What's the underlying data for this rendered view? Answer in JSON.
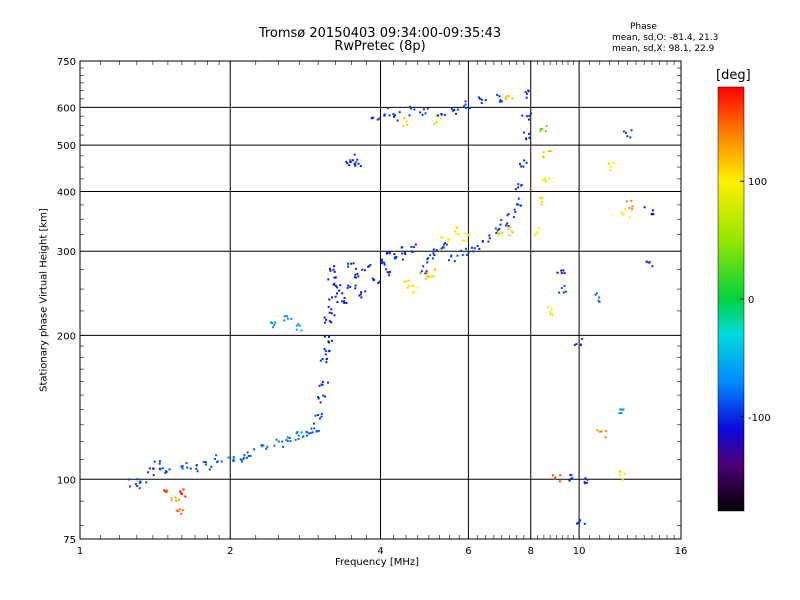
{
  "header": {
    "title_line1": "Tromsø 20150403 09:34:00-09:35:43",
    "title_line2": "RwPretec (8p)"
  },
  "phase_box": {
    "heading": "Phase",
    "line_o": "mean, sd,O: -81.4, 21.3",
    "line_x": "mean, sd,X:  98.1, 22.9"
  },
  "colorbar": {
    "unit": "[deg]",
    "ticks": [
      {
        "value": 100,
        "label": "100"
      },
      {
        "value": 0,
        "label": "0"
      },
      {
        "value": -100,
        "label": "-100"
      }
    ],
    "range": [
      -180,
      180
    ]
  },
  "chart_data": {
    "type": "scatter",
    "title": "Tromsø 20150403 09:34:00-09:35:43",
    "subtitle": "RwPretec (8p)",
    "xlabel": "Frequency [MHz]",
    "ylabel": "Stationary phase Virtual Height [km]",
    "xscale": "log",
    "yscale": "log",
    "xlim": [
      1,
      16
    ],
    "ylim": [
      75,
      750
    ],
    "xticks": [
      1,
      2,
      4,
      6,
      8,
      10,
      16
    ],
    "xtick_labels": [
      "1",
      "2",
      "4",
      "6",
      "8",
      "10",
      "16"
    ],
    "yticks": [
      75,
      100,
      200,
      300,
      400,
      500,
      600,
      750
    ],
    "ytick_labels": [
      "75",
      "100",
      "200",
      "300",
      "400",
      "500",
      "600",
      "750"
    ],
    "grid_x": [
      2,
      4,
      6,
      8,
      10
    ],
    "grid_y": [
      100,
      200,
      300,
      400,
      500,
      600
    ],
    "grid": true,
    "color_scale": "phase_deg",
    "points": [
      [
        1.28,
        98,
        -95
      ],
      [
        1.33,
        97,
        -90
      ],
      [
        1.38,
        104,
        -100
      ],
      [
        1.42,
        107,
        -95
      ],
      [
        1.48,
        104,
        -90
      ],
      [
        1.5,
        95,
        160
      ],
      [
        1.55,
        90,
        130
      ],
      [
        1.58,
        85,
        150
      ],
      [
        1.6,
        94,
        170
      ],
      [
        1.62,
        106,
        -90
      ],
      [
        1.7,
        105,
        -95
      ],
      [
        1.8,
        107,
        -92
      ],
      [
        1.9,
        110,
        -85
      ],
      [
        2.0,
        110,
        -80
      ],
      [
        2.1,
        111,
        -85
      ],
      [
        2.2,
        113,
        -85
      ],
      [
        2.35,
        116,
        -80
      ],
      [
        2.5,
        119,
        -80
      ],
      [
        2.6,
        121,
        -78
      ],
      [
        2.7,
        123,
        -78
      ],
      [
        2.8,
        124,
        -80
      ],
      [
        2.9,
        126,
        -85
      ],
      [
        2.98,
        128,
        -90
      ],
      [
        3.02,
        135,
        -95
      ],
      [
        3.05,
        147,
        -100
      ],
      [
        3.08,
        160,
        -100
      ],
      [
        3.1,
        175,
        -100
      ],
      [
        3.12,
        185,
        -100
      ],
      [
        3.15,
        195,
        -105
      ],
      [
        3.15,
        215,
        -105
      ],
      [
        3.2,
        225,
        -105
      ],
      [
        3.22,
        240,
        -105
      ],
      [
        3.2,
        260,
        -110
      ],
      [
        3.18,
        275,
        -110
      ],
      [
        3.3,
        250,
        -105
      ],
      [
        3.4,
        235,
        -105
      ],
      [
        3.5,
        255,
        -100
      ],
      [
        3.5,
        280,
        -100
      ],
      [
        3.6,
        265,
        -100
      ],
      [
        3.7,
        245,
        -105
      ],
      [
        3.75,
        275,
        -100
      ],
      [
        3.9,
        260,
        -105
      ],
      [
        4.0,
        285,
        -100
      ],
      [
        4.1,
        270,
        -100
      ],
      [
        4.2,
        295,
        -105
      ],
      [
        4.35,
        290,
        -100
      ],
      [
        4.5,
        300,
        -100
      ],
      [
        4.7,
        305,
        -100
      ],
      [
        4.85,
        275,
        -100
      ],
      [
        5.0,
        290,
        -95
      ],
      [
        5.2,
        300,
        -100
      ],
      [
        5.4,
        310,
        -95
      ],
      [
        5.6,
        290,
        -95
      ],
      [
        5.9,
        300,
        -90
      ],
      [
        6.2,
        305,
        -100
      ],
      [
        6.5,
        320,
        -100
      ],
      [
        6.8,
        330,
        -95
      ],
      [
        7.1,
        345,
        -100
      ],
      [
        7.3,
        360,
        -95
      ],
      [
        7.5,
        380,
        -95
      ],
      [
        7.6,
        410,
        -100
      ],
      [
        7.7,
        460,
        -100
      ],
      [
        7.8,
        520,
        -100
      ],
      [
        7.85,
        575,
        -100
      ],
      [
        7.9,
        640,
        -100
      ],
      [
        8.3,
        330,
        100
      ],
      [
        8.45,
        380,
        110
      ],
      [
        8.55,
        420,
        90
      ],
      [
        8.6,
        480,
        120
      ],
      [
        8.5,
        540,
        30
      ],
      [
        4.5,
        255,
        110
      ],
      [
        4.7,
        250,
        100
      ],
      [
        4.9,
        265,
        120
      ],
      [
        5.1,
        270,
        110
      ],
      [
        5.4,
        320,
        100
      ],
      [
        5.7,
        330,
        105
      ],
      [
        5.9,
        320,
        100
      ],
      [
        6.9,
        330,
        110
      ],
      [
        7.3,
        330,
        115
      ],
      [
        3.9,
        570,
        -100
      ],
      [
        4.1,
        585,
        -95
      ],
      [
        4.3,
        575,
        -100
      ],
      [
        4.6,
        590,
        -90
      ],
      [
        4.9,
        585,
        -100
      ],
      [
        5.3,
        575,
        -95
      ],
      [
        5.6,
        590,
        -100
      ],
      [
        6.0,
        610,
        -95
      ],
      [
        6.4,
        620,
        -100
      ],
      [
        6.9,
        625,
        -95
      ],
      [
        4.5,
        560,
        110
      ],
      [
        5.2,
        565,
        110
      ],
      [
        7.2,
        630,
        120
      ],
      [
        3.48,
        460,
        -100
      ],
      [
        3.55,
        470,
        -95
      ],
      [
        3.6,
        455,
        -100
      ],
      [
        2.42,
        210,
        -70
      ],
      [
        2.6,
        215,
        -70
      ],
      [
        2.75,
        208,
        -60
      ],
      [
        9.0,
        100,
        160
      ],
      [
        9.6,
        100,
        -100
      ],
      [
        10.2,
        100,
        -100
      ],
      [
        12.1,
        102,
        110
      ],
      [
        11.1,
        125,
        140
      ],
      [
        12.2,
        140,
        -70
      ],
      [
        10.0,
        195,
        -100
      ],
      [
        9.2,
        275,
        -110
      ],
      [
        12.4,
        360,
        100
      ],
      [
        13.8,
        365,
        -110
      ],
      [
        13.8,
        280,
        -100
      ],
      [
        12.6,
        375,
        140
      ],
      [
        11.6,
        450,
        90
      ],
      [
        12.5,
        530,
        -95
      ],
      [
        10.1,
        82,
        -100
      ],
      [
        8.7,
        225,
        90
      ],
      [
        9.3,
        250,
        -90
      ],
      [
        10.9,
        240,
        -80
      ]
    ]
  }
}
